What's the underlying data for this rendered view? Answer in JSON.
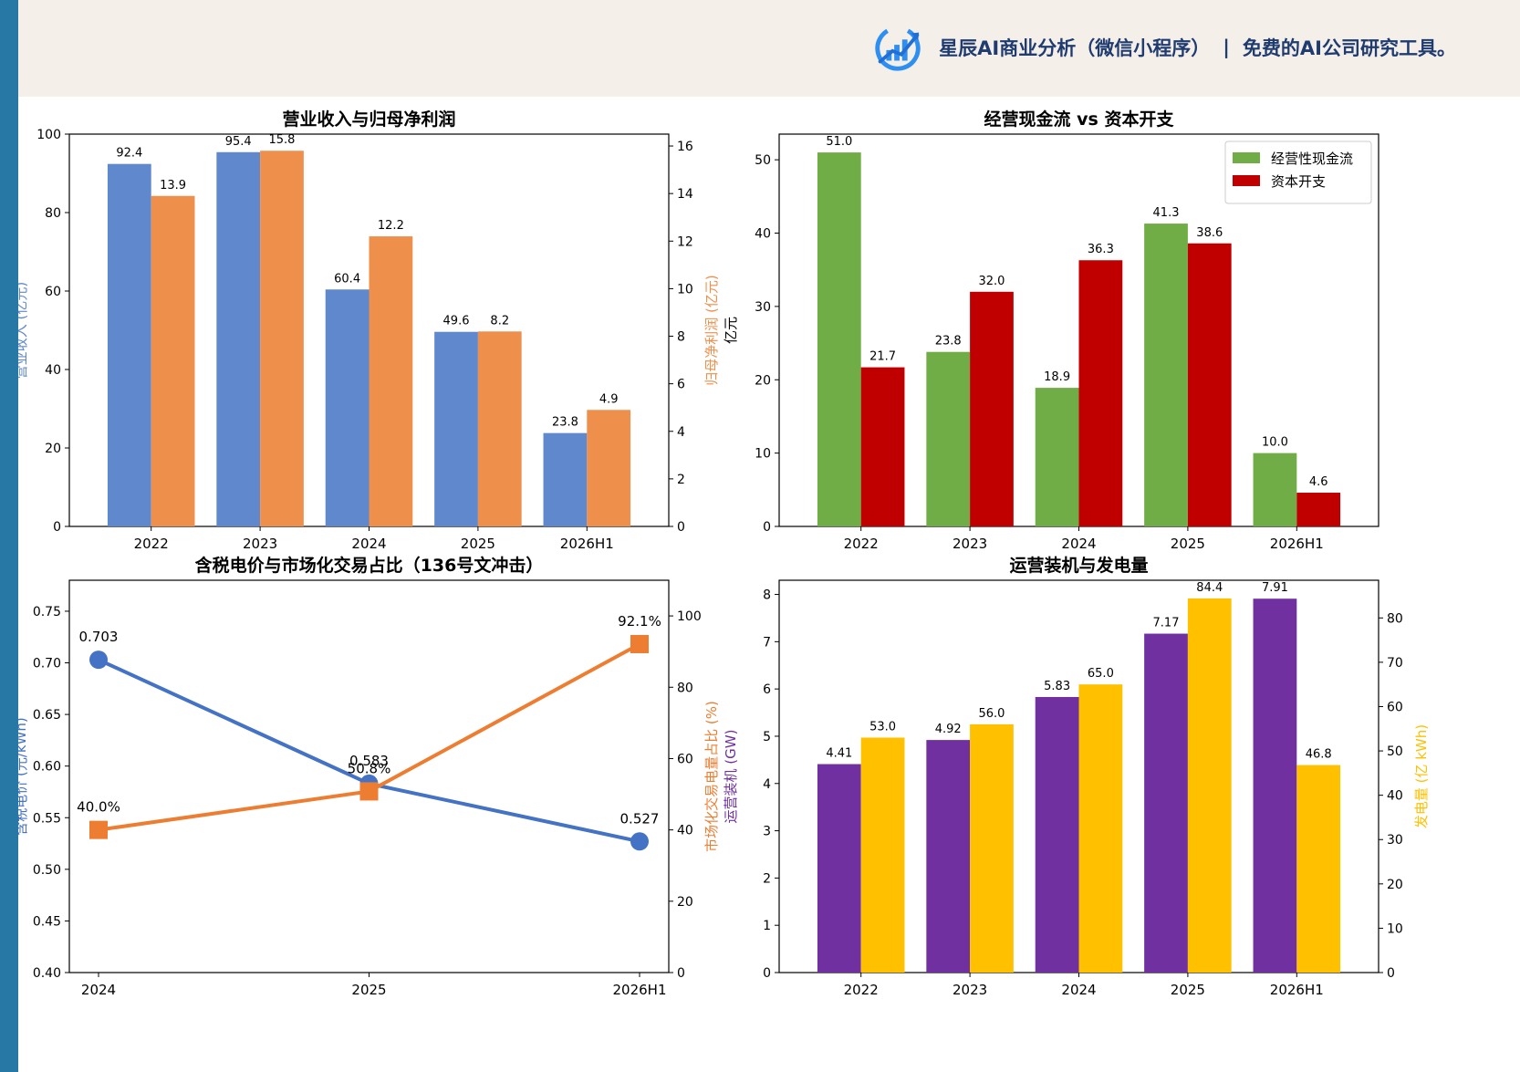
{
  "header": {
    "brand_name": "星辰AI商业分析（微信小程序）",
    "separator": "|",
    "tagline": "免费的AI公司研究工具。",
    "logo_icon": "bar-chart-arrow-logo-icon"
  },
  "colors": {
    "sidebar": "#2878a6",
    "header_bg": "#f4f0e9",
    "brand_text": "#1f3b70"
  },
  "chart_data": [
    {
      "type": "bar",
      "title": "营业收入与归母净利润",
      "categories": [
        "2022",
        "2023",
        "2024",
        "2025",
        "2026H1"
      ],
      "ylabel": "营业收入 (亿元)",
      "ylabel_right": "归母净利润 (亿元)",
      "ylim": [
        0,
        100
      ],
      "ylim_right": [
        0,
        16.5
      ],
      "yticks": [
        0,
        20,
        40,
        60,
        80,
        100
      ],
      "yticks_right": [
        0,
        2,
        4,
        6,
        8,
        10,
        12,
        14,
        16
      ],
      "series": [
        {
          "values": [
            92.4,
            95.4,
            60.4,
            49.6,
            23.8
          ],
          "axis": "left",
          "color": "#6088cc",
          "labels": [
            "92.4",
            "95.4",
            "60.4",
            "49.6",
            "23.8"
          ]
        },
        {
          "values": [
            13.9,
            15.8,
            12.2,
            8.2,
            4.9
          ],
          "axis": "right",
          "color": "#ef8f4c",
          "labels": [
            "13.9",
            "15.8",
            "12.2",
            "8.2",
            "4.9"
          ]
        }
      ],
      "legend": "none"
    },
    {
      "type": "bar",
      "title": "经营现金流 vs 资本开支",
      "categories": [
        "2022",
        "2023",
        "2024",
        "2025",
        "2026H1"
      ],
      "ylabel": "亿元",
      "ylim": [
        0,
        53.5
      ],
      "yticks": [
        0,
        10,
        20,
        30,
        40,
        50
      ],
      "series": [
        {
          "name": "经营性现金流",
          "values": [
            51.0,
            23.8,
            18.9,
            41.3,
            10.0
          ],
          "axis": "left",
          "color": "#70ad47",
          "labels": [
            "51.0",
            "23.8",
            "18.9",
            "41.3",
            "10.0"
          ]
        },
        {
          "name": "资本开支",
          "values": [
            21.7,
            32.0,
            36.3,
            38.6,
            4.6
          ],
          "axis": "left",
          "color": "#c00000",
          "labels": [
            "21.7",
            "32.0",
            "36.3",
            "38.6",
            "4.6"
          ]
        }
      ],
      "legend": "top-right"
    },
    {
      "type": "line",
      "title": "含税电价与市场化交易占比（136号文冲击）",
      "categories": [
        "2024",
        "2025",
        "2026H1"
      ],
      "ylabel": "含税电价 (元/kWh)",
      "ylabel_right": "市场化交易电量占比 (%)",
      "ylim": [
        0.4,
        0.78
      ],
      "ylim_right": [
        0,
        110
      ],
      "yticks": [
        "0.40",
        "0.45",
        "0.50",
        "0.55",
        "0.60",
        "0.65",
        "0.70",
        "0.75"
      ],
      "yticks_right": [
        0,
        20,
        40,
        60,
        80,
        100
      ],
      "series": [
        {
          "values": [
            0.703,
            0.583,
            0.527
          ],
          "axis": "left",
          "color": "#4472c4",
          "marker": "circle",
          "labels": [
            "0.703",
            "0.583",
            "0.527"
          ]
        },
        {
          "values": [
            40.0,
            50.8,
            92.1
          ],
          "axis": "right",
          "color": "#ed7d31",
          "marker": "square",
          "labels": [
            "40.0%",
            "50.8%",
            "92.1%"
          ]
        }
      ],
      "legend": "none"
    },
    {
      "type": "bar",
      "title": "运营装机与发电量",
      "categories": [
        "2022",
        "2023",
        "2024",
        "2025",
        "2026H1"
      ],
      "ylabel": "运营装机 (GW)",
      "ylabel_right": "发电量 (亿 kWh)",
      "ylim": [
        0,
        8.3
      ],
      "ylim_right": [
        0,
        88.5
      ],
      "yticks": [
        0,
        1,
        2,
        3,
        4,
        5,
        6,
        7,
        8
      ],
      "yticks_right": [
        0,
        10,
        20,
        30,
        40,
        50,
        60,
        70,
        80
      ],
      "series": [
        {
          "values": [
            4.41,
            4.92,
            5.83,
            7.17,
            7.91
          ],
          "axis": "left",
          "color": "#7030a0",
          "labels": [
            "4.41",
            "4.92",
            "5.83",
            "7.17",
            "7.91"
          ]
        },
        {
          "values": [
            53.0,
            56.0,
            65.0,
            84.4,
            46.8
          ],
          "axis": "right",
          "color": "#ffc000",
          "labels": [
            "53.0",
            "56.0",
            "65.0",
            "84.4",
            "46.8"
          ]
        }
      ],
      "legend": "none"
    }
  ]
}
